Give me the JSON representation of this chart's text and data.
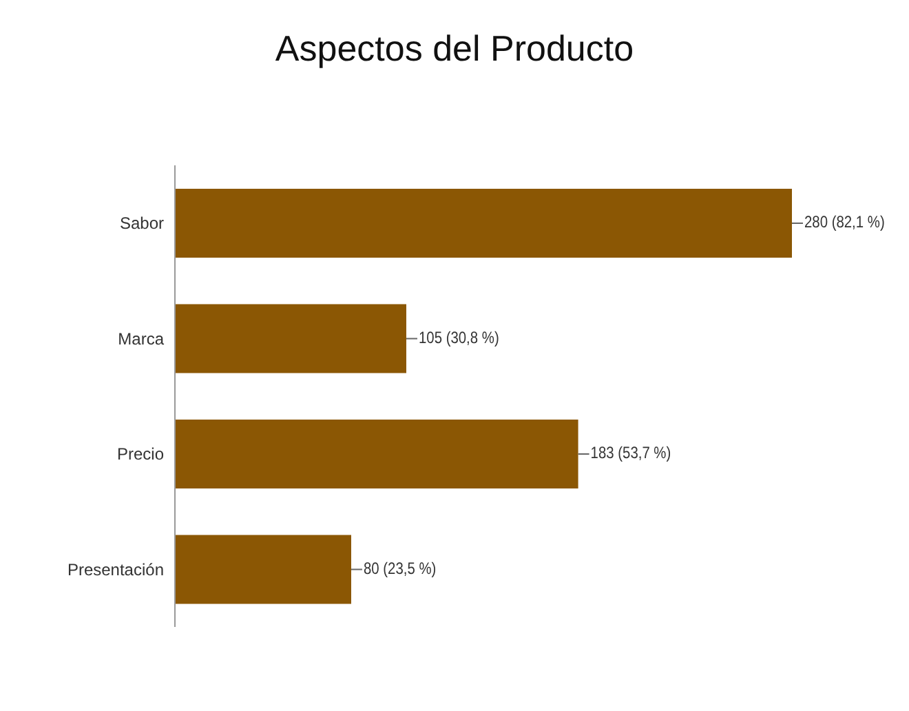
{
  "chart_data": {
    "type": "bar",
    "title": "Aspectos del Producto",
    "orientation": "horizontal",
    "categories": [
      "Sabor",
      "Marca",
      "Precio",
      "Presentación"
    ],
    "values": [
      280,
      105,
      183,
      80
    ],
    "value_labels": [
      "280 (82,1 %)",
      "105 (30,8 %)",
      "183 (53,7 %)",
      "80 (23,5 %)"
    ],
    "color": "#8b5704",
    "tick_labels": "y"
  }
}
